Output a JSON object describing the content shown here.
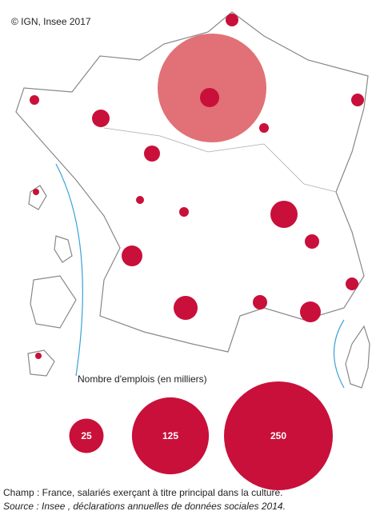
{
  "copyright": "© IGN, Insee 2017",
  "legend": {
    "title": "Nombre d'emplois  (en milliers)",
    "values": [
      25,
      125,
      250
    ],
    "color": "#c8103a"
  },
  "notes": {
    "scope": "Champ : France, salariés exerçant à titre principal dans la culture.",
    "source": "Source : Insee , déclarations annuelles de données sociales  2014."
  }
}
